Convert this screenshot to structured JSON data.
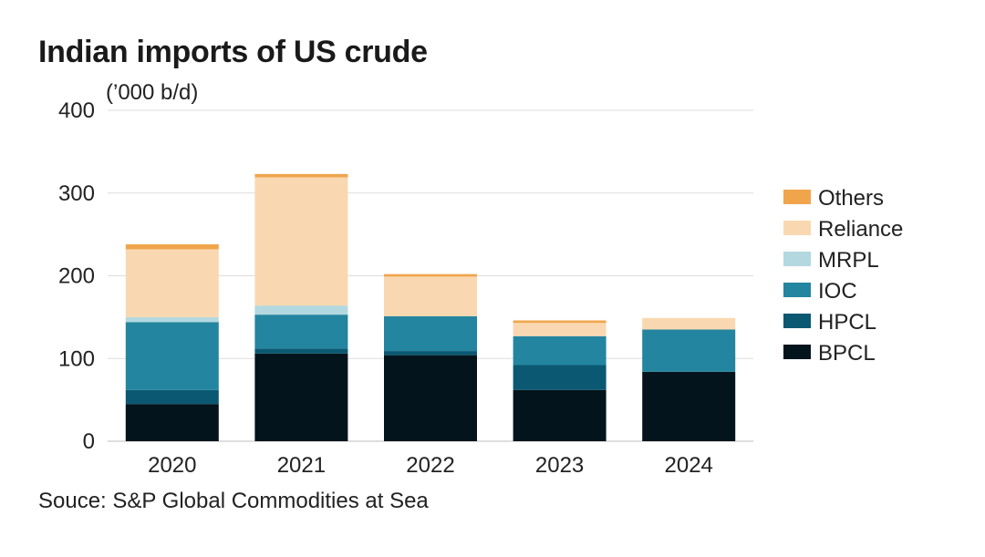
{
  "title": "Indian imports of US crude",
  "units_label": "(’000 b/d)",
  "source": "Souce: S&P Global Commodities at Sea",
  "chart_data": {
    "type": "bar",
    "stacked": true,
    "title": "Indian imports of US crude",
    "ylabel": "(’000 b/d)",
    "xlabel": "",
    "ylim": [
      0,
      400
    ],
    "yticks": [
      0,
      100,
      200,
      300,
      400
    ],
    "grid": true,
    "legend_position": "right",
    "categories": [
      "2020",
      "2021",
      "2022",
      "2023",
      "2024"
    ],
    "series": [
      {
        "name": "BPCL",
        "color": "#04141c",
        "values": [
          45,
          106,
          104,
          62,
          84
        ]
      },
      {
        "name": "HPCL",
        "color": "#0b5872",
        "values": [
          17,
          6,
          5,
          30,
          0
        ]
      },
      {
        "name": "IOC",
        "color": "#23859f",
        "values": [
          82,
          41,
          42,
          35,
          51
        ]
      },
      {
        "name": "MRPL",
        "color": "#b3d8df",
        "values": [
          6,
          11,
          0,
          0,
          0
        ]
      },
      {
        "name": "Reliance",
        "color": "#f9d8b1",
        "values": [
          82,
          155,
          48,
          16,
          14
        ]
      },
      {
        "name": "Others",
        "color": "#f0a54c",
        "values": [
          6,
          4,
          3,
          3,
          0
        ]
      }
    ]
  }
}
